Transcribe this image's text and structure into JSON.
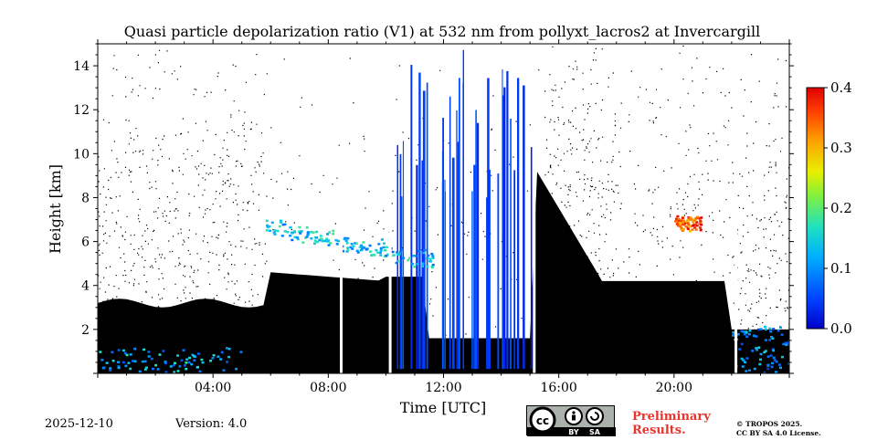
{
  "chart_data": {
    "type": "heatmap",
    "title": "Quasi particle depolarization ratio (V1) at 532 nm from pollyxt_lacros2 at Invercargill",
    "xlabel": "Time [UTC]",
    "ylabel": "Height [km]",
    "xlim": [
      0,
      24
    ],
    "ylim": [
      0,
      15
    ],
    "x_ticks": [
      {
        "value": 4,
        "label": "04:00"
      },
      {
        "value": 8,
        "label": "08:00"
      },
      {
        "value": 12,
        "label": "12:00"
      },
      {
        "value": 16,
        "label": "16:00"
      },
      {
        "value": 20,
        "label": "20:00"
      }
    ],
    "y_ticks": [
      {
        "value": 2,
        "label": "2"
      },
      {
        "value": 4,
        "label": "4"
      },
      {
        "value": 6,
        "label": "6"
      },
      {
        "value": 8,
        "label": "8"
      },
      {
        "value": 10,
        "label": "10"
      },
      {
        "value": 12,
        "label": "12"
      },
      {
        "value": 14,
        "label": "14"
      }
    ],
    "colorbar": {
      "min": 0.0,
      "max": 0.4,
      "colormap": "jet",
      "ticks": [
        {
          "value": 0.0,
          "label": "0.0"
        },
        {
          "value": 0.1,
          "label": "0.1"
        },
        {
          "value": 0.2,
          "label": "0.2"
        },
        {
          "value": 0.3,
          "label": "0.3"
        },
        {
          "value": 0.4,
          "label": "0.4"
        }
      ]
    },
    "features": [
      {
        "name": "cloud-layer-morning",
        "start": 5.8,
        "end": 11.6,
        "base_km": 5.4,
        "top_km": 6.5,
        "value": 0.13
      },
      {
        "name": "low-aerosol-layer",
        "start": 0.0,
        "end": 5.0,
        "base_km": 0.1,
        "top_km": 1.2,
        "value": 0.12
      },
      {
        "name": "ice-cloud-evening",
        "start": 20.0,
        "end": 20.9,
        "base_km": 6.5,
        "top_km": 7.2,
        "value": 0.35
      },
      {
        "name": "surface-layer-night",
        "start": 22.0,
        "end": 24.0,
        "base_km": 0.0,
        "top_km": 2.2,
        "value": 0.1
      }
    ],
    "gaps_hours": [
      8.4,
      10.1,
      15.1,
      22.1
    ]
  },
  "footer": {
    "date": "2025-12-10",
    "version": "Version: 4.0",
    "preliminary_line1": "Preliminary",
    "preliminary_line2": "Results.",
    "copyright_line1": "© TROPOS 2025.",
    "copyright_line2": "CC BY SA 4.0 License.",
    "cc_label": "cc",
    "by_label": "BY",
    "sa_label": "SA"
  }
}
